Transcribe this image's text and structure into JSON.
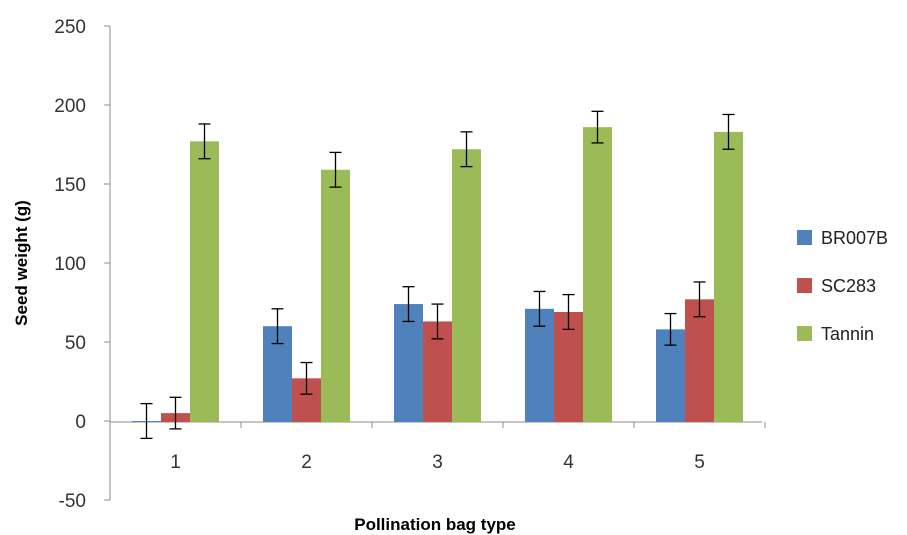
{
  "chart_data": {
    "type": "bar",
    "title": "",
    "xlabel": "Pollination bag type",
    "ylabel": "Seed weight (g)",
    "categories": [
      "1",
      "2",
      "3",
      "4",
      "5"
    ],
    "ylim": [
      -50,
      250
    ],
    "yticks": [
      -50,
      0,
      50,
      100,
      150,
      200,
      250
    ],
    "grid": false,
    "legend_position": "right",
    "series": [
      {
        "name": "BR007B",
        "color": "#4f81bd",
        "values": [
          0,
          60,
          74,
          71,
          58
        ],
        "errors": [
          11,
          11,
          11,
          11,
          10
        ]
      },
      {
        "name": "SC283",
        "color": "#c0504d",
        "values": [
          5,
          27,
          63,
          69,
          77
        ],
        "errors": [
          10,
          10,
          11,
          11,
          11
        ]
      },
      {
        "name": "Tannin",
        "color": "#9bbb59",
        "values": [
          177,
          159,
          172,
          186,
          183
        ],
        "errors": [
          11,
          11,
          11,
          10,
          11
        ]
      }
    ]
  }
}
